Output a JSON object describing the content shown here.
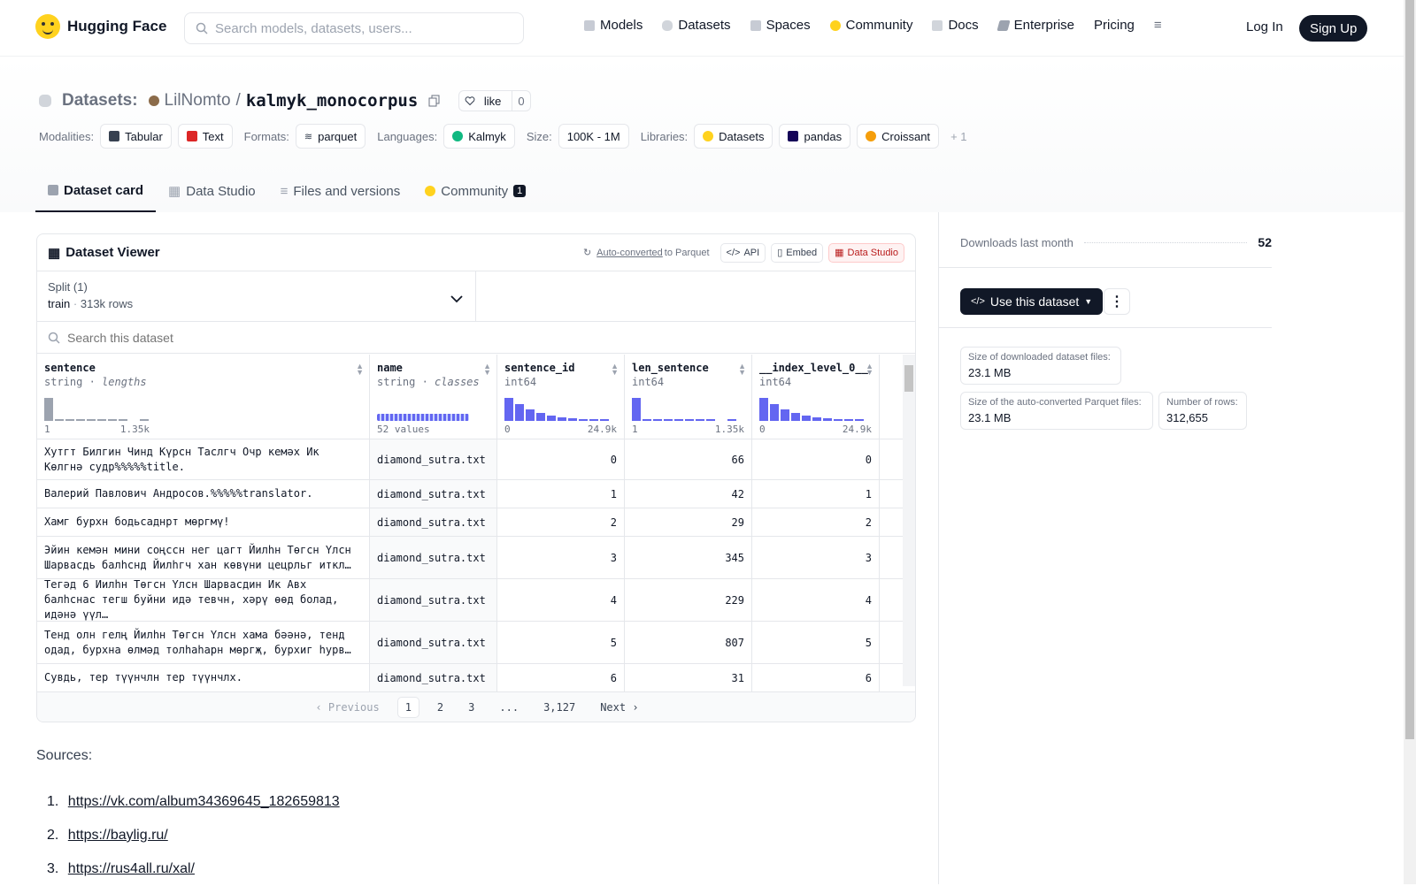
{
  "nav": {
    "brand": "Hugging Face",
    "search_placeholder": "Search models, datasets, users...",
    "links": [
      "Models",
      "Datasets",
      "Spaces",
      "Community",
      "Docs",
      "Enterprise",
      "Pricing"
    ],
    "login": "Log In",
    "signup": "Sign Up"
  },
  "header": {
    "section": "Datasets:",
    "owner": "LilNomto",
    "slash": "/",
    "repo": "kalmyk_monocorpus",
    "like_label": "like",
    "like_count": "0",
    "modalities_label": "Modalities:",
    "modalities": [
      "Tabular",
      "Text"
    ],
    "formats_label": "Formats:",
    "formats": [
      "parquet"
    ],
    "languages_label": "Languages:",
    "languages": [
      "Kalmyk"
    ],
    "size_label": "Size:",
    "size": "100K - 1M",
    "libraries_label": "Libraries:",
    "libraries": [
      "Datasets",
      "pandas",
      "Croissant"
    ],
    "libraries_more": "+ 1"
  },
  "tabs": [
    {
      "label": "Dataset card"
    },
    {
      "label": "Data Studio"
    },
    {
      "label": "Files and versions"
    },
    {
      "label": "Community",
      "badge": "1"
    }
  ],
  "viewer": {
    "title": "Dataset Viewer",
    "auto_converted": "Auto-converted",
    "to_parquet": "to Parquet",
    "api": "API",
    "embed": "Embed",
    "data_studio": "Data Studio",
    "split_label": "Split (1)",
    "split_name": "train",
    "split_rows": "313k rows",
    "search_placeholder": "Search this dataset",
    "columns": [
      {
        "name": "sentence",
        "type": "string",
        "kind": "lengths",
        "min": "1",
        "max": "1.35k"
      },
      {
        "name": "name",
        "type": "string",
        "kind": "classes",
        "min": "52 values",
        "max": ""
      },
      {
        "name": "sentence_id",
        "type": "int64",
        "kind": "",
        "min": "0",
        "max": "24.9k"
      },
      {
        "name": "len_sentence",
        "type": "int64",
        "kind": "",
        "min": "1",
        "max": "1.35k"
      },
      {
        "name": "__index_level_0__",
        "type": "int64",
        "kind": "",
        "min": "0",
        "max": "24.9k"
      }
    ],
    "histograms": {
      "sentence": [
        1.0,
        0.05,
        0.05,
        0.05,
        0.05,
        0.05,
        0.05,
        0.05,
        0.0,
        0.05
      ],
      "sentence_id": [
        1.0,
        0.72,
        0.5,
        0.35,
        0.22,
        0.15,
        0.1,
        0.08,
        0.06,
        0.05
      ],
      "len_sentence": [
        1.0,
        0.05,
        0.05,
        0.05,
        0.05,
        0.05,
        0.05,
        0.05,
        0.0,
        0.05
      ],
      "index": [
        1.0,
        0.72,
        0.5,
        0.35,
        0.22,
        0.15,
        0.1,
        0.08,
        0.06,
        0.05
      ]
    },
    "rows": [
      {
        "sentence": "Хутгт Билгин Чинд Күрсн Таслгч Очр кемәх Ик Көлгнә судр%%%%%title.",
        "name": "diamond_sutra.txt",
        "sentence_id": "0",
        "len_sentence": "66",
        "index": "0"
      },
      {
        "sentence": "Валерий Павлович Андросов.%%%%%translator.",
        "name": "diamond_sutra.txt",
        "sentence_id": "1",
        "len_sentence": "42",
        "index": "1"
      },
      {
        "sentence": "Хамг бурхн бодьсаднрт мөргмү!",
        "name": "diamond_sutra.txt",
        "sentence_id": "2",
        "len_sentence": "29",
        "index": "2"
      },
      {
        "sentence": "Эйин кемән мини соңссн нег цагт Йилһн Төгсн Үлсн Шарвасдь балһснд Йилһгч хан көвүни цецрльг иткл…",
        "name": "diamond_sutra.txt",
        "sentence_id": "3",
        "len_sentence": "345",
        "index": "3"
      },
      {
        "sentence": "Тегәд 6 Йилһн Төгсн Үлсн Шарвасдин Ик Авх балһснас тегш буйни идә тевчн, хәрү өөд болад, идәнә үүл…",
        "name": "diamond_sutra.txt",
        "sentence_id": "4",
        "len_sentence": "229",
        "index": "4"
      },
      {
        "sentence": "Тенд олн гелң Йилһн Төгсн Үлсн хама бәәнә, тенд одад, бурхна өлмәд толһаһарн мөргҗ, бурхиг һурв…",
        "name": "diamond_sutra.txt",
        "sentence_id": "5",
        "len_sentence": "807",
        "index": "5"
      },
      {
        "sentence": "Сувдь, тер түүнчлн тер түүнчлх.",
        "name": "diamond_sutra.txt",
        "sentence_id": "6",
        "len_sentence": "31",
        "index": "6"
      }
    ],
    "pager": {
      "prev": "Previous",
      "pages": [
        "1",
        "2",
        "3",
        "...",
        "3,127"
      ],
      "next": "Next"
    }
  },
  "sidebar": {
    "downloads_label": "Downloads last month",
    "downloads_value": "52",
    "use_dataset": "Use this dataset",
    "stats": [
      {
        "label": "Size of downloaded dataset files:",
        "value": "23.1 MB"
      },
      {
        "label": "Size of the auto-converted Parquet files:",
        "value": "23.1 MB"
      },
      {
        "label": "Number of rows:",
        "value": "312,655"
      }
    ]
  },
  "card": {
    "sources_label": "Sources:",
    "sources": [
      "https://vk.com/album34369645_182659813",
      "https://baylig.ru/",
      "https://rus4all.ru/xal/"
    ]
  }
}
